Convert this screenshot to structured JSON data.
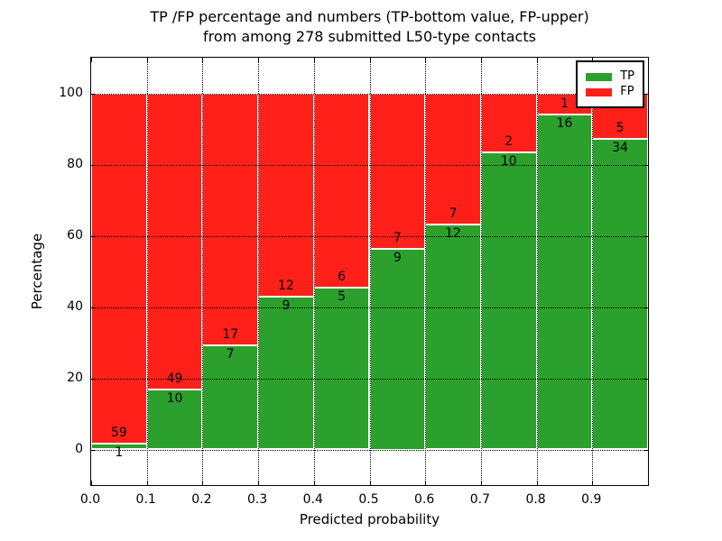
{
  "title": {
    "line1": "TP /FP percentage and numbers (TP-bottom value, FP-upper)",
    "line2": "from among 278 submitted L50-type contacts"
  },
  "chart_data": {
    "type": "bar",
    "stacked": true,
    "title": "TP /FP percentage and numbers (TP-bottom value, FP-upper)\nfrom among 278 submitted L50-type contacts",
    "xlabel": "Predicted probability",
    "ylabel": "Percentage",
    "total_contacts": 278,
    "xlim": [
      0.0,
      1.0
    ],
    "ylim": [
      -10,
      110
    ],
    "bin_width": 0.1,
    "categories": [
      "0.0-0.1",
      "0.1-0.2",
      "0.2-0.3",
      "0.3-0.4",
      "0.4-0.5",
      "0.5-0.6",
      "0.6-0.7",
      "0.7-0.8",
      "0.8-0.9",
      "0.9-1.0"
    ],
    "xtick_values": [
      0.0,
      0.1,
      0.2,
      0.3,
      0.4,
      0.5,
      0.6,
      0.7,
      0.8,
      0.9
    ],
    "xtick_labels": [
      "0.0",
      "0.1",
      "0.2",
      "0.3",
      "0.4",
      "0.5",
      "0.6",
      "0.7",
      "0.8",
      "0.9"
    ],
    "ytick_values": [
      0,
      20,
      40,
      60,
      80,
      100
    ],
    "ytick_labels": [
      "0",
      "20",
      "40",
      "60",
      "80",
      "100"
    ],
    "grid": "dotted",
    "bar_label_note": "TP count below green/red boundary, FP count above it",
    "series": [
      {
        "name": "TP",
        "color": "#2ca02c",
        "counts": [
          1,
          10,
          7,
          9,
          5,
          9,
          12,
          10,
          16,
          34
        ]
      },
      {
        "name": "FP",
        "color": "#ff201a",
        "counts": [
          59,
          49,
          17,
          12,
          6,
          7,
          7,
          2,
          1,
          5
        ]
      }
    ],
    "legend": {
      "position": "upper right",
      "entries": [
        {
          "label": "TP",
          "color": "#2ca02c"
        },
        {
          "label": "FP",
          "color": "#ff201a"
        }
      ]
    }
  }
}
